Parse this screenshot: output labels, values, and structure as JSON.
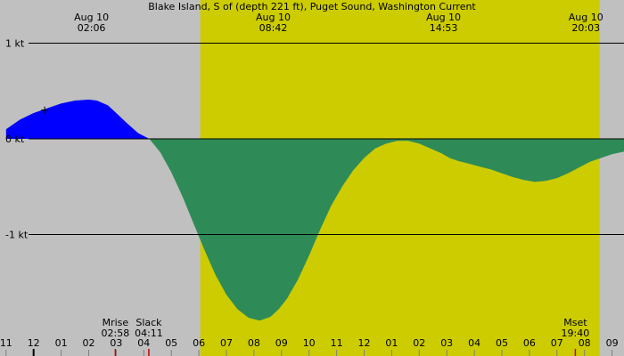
{
  "chart_data": {
    "type": "area",
    "title": "Blake Island, S of (depth 221 ft), Puget Sound, Washington Current",
    "xlabel": "",
    "ylabel": "",
    "x_start_hour": 11,
    "x_end_hour": 33.5,
    "ylim": [
      -2.0,
      1.0
    ],
    "y_ticks": [
      {
        "value": 1,
        "label": "1 kt"
      },
      {
        "value": 0,
        "label": "0 kt"
      },
      {
        "value": -1,
        "label": "-1 kt"
      }
    ],
    "x_tick_labels": [
      {
        "hour": 11,
        "label": "11"
      },
      {
        "hour": 12,
        "label": "12"
      },
      {
        "hour": 13,
        "label": "01"
      },
      {
        "hour": 14,
        "label": "02"
      },
      {
        "hour": 15,
        "label": "03"
      },
      {
        "hour": 16,
        "label": "04"
      },
      {
        "hour": 17,
        "label": "05"
      },
      {
        "hour": 18,
        "label": "06"
      },
      {
        "hour": 19,
        "label": "07"
      },
      {
        "hour": 20,
        "label": "08"
      },
      {
        "hour": 21,
        "label": "09"
      },
      {
        "hour": 22,
        "label": "10"
      },
      {
        "hour": 23,
        "label": "11"
      },
      {
        "hour": 24,
        "label": "12"
      },
      {
        "hour": 25,
        "label": "01"
      },
      {
        "hour": 26,
        "label": "02"
      },
      {
        "hour": 27,
        "label": "03"
      },
      {
        "hour": 28,
        "label": "04"
      },
      {
        "hour": 29,
        "label": "05"
      },
      {
        "hour": 30,
        "label": "06"
      },
      {
        "hour": 31,
        "label": "07"
      },
      {
        "hour": 32,
        "label": "08"
      },
      {
        "hour": 33,
        "label": "09"
      }
    ],
    "daylight": {
      "start_hour": 18.05,
      "end_hour": 32.55
    },
    "extrema": [
      {
        "hour": 14.1,
        "date": "Aug 10",
        "time": "02:06"
      },
      {
        "hour": 20.7,
        "date": "Aug 10",
        "time": "08:42"
      },
      {
        "hour": 26.883,
        "date": "Aug 10",
        "time": "14:53"
      },
      {
        "hour": 32.05,
        "date": "Aug 10",
        "time": "20:03"
      }
    ],
    "events": [
      {
        "hour": 14.967,
        "label": "Mrise",
        "time": "02:58"
      },
      {
        "hour": 16.183,
        "label": "Slack",
        "time": "04:11"
      },
      {
        "hour": 31.667,
        "label": "Mset",
        "time": "19:40"
      }
    ],
    "point_marker": {
      "hour": 12.4,
      "value": 0.3
    },
    "series": [
      {
        "x": [
          11.0,
          11.5,
          12.0,
          12.5,
          13.0,
          13.5,
          14.0,
          14.3,
          14.7,
          15.0,
          15.4,
          15.8,
          16.2,
          16.6,
          17.0,
          17.4,
          17.8,
          18.2,
          18.6,
          19.0,
          19.4,
          19.8,
          20.2,
          20.6,
          20.9,
          21.2,
          21.6,
          22.0,
          22.4,
          22.8,
          23.2,
          23.6,
          24.0,
          24.4,
          24.8,
          25.2,
          25.6,
          26.0,
          26.4,
          26.8,
          27.1,
          27.4,
          27.8,
          28.2,
          28.6,
          29.0,
          29.4,
          29.8,
          30.2,
          30.6,
          31.0,
          31.4,
          31.8,
          32.2,
          32.6,
          33.0,
          33.5
        ],
        "values": [
          0.1,
          0.2,
          0.27,
          0.32,
          0.37,
          0.4,
          0.41,
          0.4,
          0.35,
          0.27,
          0.16,
          0.06,
          0.0,
          -0.14,
          -0.35,
          -0.6,
          -0.88,
          -1.16,
          -1.42,
          -1.63,
          -1.78,
          -1.87,
          -1.9,
          -1.86,
          -1.78,
          -1.67,
          -1.47,
          -1.22,
          -0.95,
          -0.7,
          -0.5,
          -0.33,
          -0.2,
          -0.1,
          -0.05,
          -0.02,
          -0.02,
          -0.05,
          -0.1,
          -0.15,
          -0.2,
          -0.23,
          -0.26,
          -0.29,
          -0.32,
          -0.36,
          -0.4,
          -0.43,
          -0.45,
          -0.44,
          -0.41,
          -0.36,
          -0.3,
          -0.24,
          -0.2,
          -0.16,
          -0.13
        ]
      }
    ],
    "colors": {
      "background": "#c0c0c0",
      "daylight": "#cccc00",
      "flood": "#0000ff",
      "ebb": "#2e8b57",
      "axis": "#000000",
      "moon_marker": "#cc0000"
    }
  }
}
